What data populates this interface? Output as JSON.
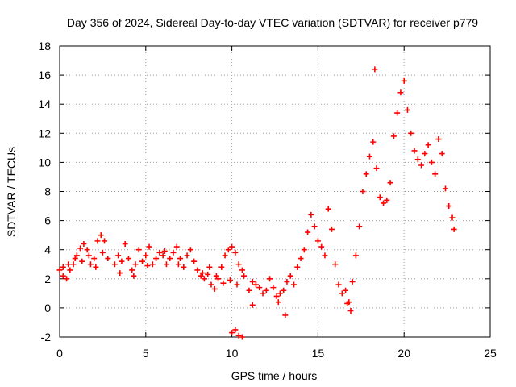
{
  "chart_data": {
    "type": "scatter",
    "title": "Day 356 of 2024, Sidereal Day-to-day VTEC variation (SDTVAR) for receiver p779",
    "xlabel": "GPS time / hours",
    "ylabel": "SDTVAR / TECUs",
    "xlim": [
      0,
      25
    ],
    "ylim": [
      -2,
      18
    ],
    "xticks": [
      0,
      5,
      10,
      15,
      20,
      25
    ],
    "yticks": [
      -2,
      0,
      2,
      4,
      6,
      8,
      10,
      12,
      14,
      16,
      18
    ],
    "grid": true,
    "marker": "+",
    "color": "#ff0000",
    "series": [
      {
        "name": "SDTVAR",
        "points": [
          [
            0.0,
            2.6
          ],
          [
            0.2,
            2.2
          ],
          [
            0.4,
            2.0
          ],
          [
            0.6,
            2.6
          ],
          [
            0.8,
            3.0
          ],
          [
            1.0,
            3.6
          ],
          [
            1.2,
            4.1
          ],
          [
            1.4,
            4.4
          ],
          [
            1.6,
            4.0
          ],
          [
            1.8,
            3.0
          ],
          [
            2.0,
            3.4
          ],
          [
            2.2,
            4.6
          ],
          [
            2.4,
            5.0
          ],
          [
            2.6,
            4.6
          ],
          [
            2.8,
            3.4
          ],
          [
            0.2,
            2.8
          ],
          [
            0.5,
            3.0
          ],
          [
            0.9,
            3.4
          ],
          [
            1.3,
            3.2
          ],
          [
            1.7,
            3.6
          ],
          [
            2.1,
            2.8
          ],
          [
            2.5,
            3.8
          ],
          [
            3.2,
            3.0
          ],
          [
            3.4,
            3.6
          ],
          [
            3.6,
            3.2
          ],
          [
            3.8,
            4.4
          ],
          [
            4.0,
            3.4
          ],
          [
            4.2,
            2.6
          ],
          [
            4.4,
            3.0
          ],
          [
            4.6,
            4.0
          ],
          [
            4.8,
            3.2
          ],
          [
            5.0,
            3.6
          ],
          [
            5.2,
            4.2
          ],
          [
            5.4,
            3.0
          ],
          [
            5.6,
            3.4
          ],
          [
            5.8,
            3.8
          ],
          [
            6.0,
            3.6
          ],
          [
            6.2,
            3.0
          ],
          [
            6.4,
            3.4
          ],
          [
            6.6,
            3.8
          ],
          [
            6.8,
            4.2
          ],
          [
            7.0,
            3.4
          ],
          [
            7.2,
            2.8
          ],
          [
            7.4,
            3.6
          ],
          [
            7.6,
            4.0
          ],
          [
            7.8,
            3.2
          ],
          [
            3.5,
            2.4
          ],
          [
            4.3,
            2.2
          ],
          [
            5.1,
            2.9
          ],
          [
            6.1,
            3.9
          ],
          [
            6.9,
            3.0
          ],
          [
            8.0,
            2.6
          ],
          [
            8.2,
            2.2
          ],
          [
            8.4,
            2.0
          ],
          [
            8.6,
            2.3
          ],
          [
            8.8,
            1.6
          ],
          [
            9.0,
            1.3
          ],
          [
            9.2,
            2.0
          ],
          [
            9.4,
            2.8
          ],
          [
            9.6,
            3.6
          ],
          [
            9.8,
            4.0
          ],
          [
            10.0,
            4.2
          ],
          [
            10.2,
            3.8
          ],
          [
            10.4,
            3.0
          ],
          [
            10.6,
            2.6
          ],
          [
            8.3,
            2.4
          ],
          [
            8.7,
            2.8
          ],
          [
            9.1,
            2.2
          ],
          [
            9.5,
            1.7
          ],
          [
            9.9,
            1.9
          ],
          [
            10.3,
            1.6
          ],
          [
            10.7,
            2.2
          ],
          [
            11.0,
            1.2
          ],
          [
            11.2,
            1.8
          ],
          [
            11.4,
            1.6
          ],
          [
            11.6,
            1.4
          ],
          [
            11.8,
            1.0
          ],
          [
            12.0,
            1.2
          ],
          [
            12.2,
            2.0
          ],
          [
            12.4,
            1.4
          ],
          [
            12.6,
            0.8
          ],
          [
            12.8,
            1.0
          ],
          [
            13.0,
            1.2
          ],
          [
            13.2,
            1.8
          ],
          [
            13.4,
            2.2
          ],
          [
            13.6,
            1.6
          ],
          [
            13.8,
            2.8
          ],
          [
            14.0,
            3.4
          ],
          [
            14.2,
            4.0
          ],
          [
            14.4,
            5.2
          ],
          [
            14.6,
            6.4
          ],
          [
            14.8,
            5.6
          ],
          [
            15.0,
            4.6
          ],
          [
            15.2,
            4.2
          ],
          [
            15.4,
            3.6
          ],
          [
            15.6,
            6.8
          ],
          [
            15.8,
            5.4
          ],
          [
            16.0,
            3.0
          ],
          [
            16.2,
            1.6
          ],
          [
            16.4,
            1.0
          ],
          [
            16.6,
            1.2
          ],
          [
            16.8,
            0.4
          ],
          [
            17.0,
            1.8
          ],
          [
            17.2,
            3.6
          ],
          [
            17.4,
            5.6
          ],
          [
            17.6,
            8.0
          ],
          [
            17.8,
            9.2
          ],
          [
            18.0,
            10.4
          ],
          [
            18.2,
            11.4
          ],
          [
            18.3,
            16.4
          ],
          [
            18.4,
            9.6
          ],
          [
            18.6,
            7.6
          ],
          [
            18.8,
            7.2
          ],
          [
            19.0,
            7.4
          ],
          [
            19.2,
            8.6
          ],
          [
            19.4,
            11.8
          ],
          [
            19.6,
            13.4
          ],
          [
            19.8,
            14.8
          ],
          [
            20.0,
            15.6
          ],
          [
            20.2,
            13.6
          ],
          [
            20.4,
            12.0
          ],
          [
            20.6,
            10.8
          ],
          [
            20.8,
            10.2
          ],
          [
            21.0,
            9.8
          ],
          [
            21.2,
            10.6
          ],
          [
            21.4,
            11.2
          ],
          [
            21.6,
            10.0
          ],
          [
            21.8,
            9.2
          ],
          [
            22.0,
            11.6
          ],
          [
            22.2,
            10.6
          ],
          [
            22.4,
            8.2
          ],
          [
            22.6,
            7.0
          ],
          [
            22.8,
            6.2
          ],
          [
            22.9,
            5.4
          ],
          [
            10.0,
            -1.7
          ],
          [
            10.2,
            -1.5
          ],
          [
            10.4,
            -1.9
          ],
          [
            10.6,
            -2.0
          ],
          [
            13.1,
            -0.5
          ],
          [
            11.2,
            0.2
          ],
          [
            12.7,
            0.4
          ],
          [
            16.9,
            -0.2
          ],
          [
            16.7,
            0.3
          ]
        ]
      }
    ]
  }
}
